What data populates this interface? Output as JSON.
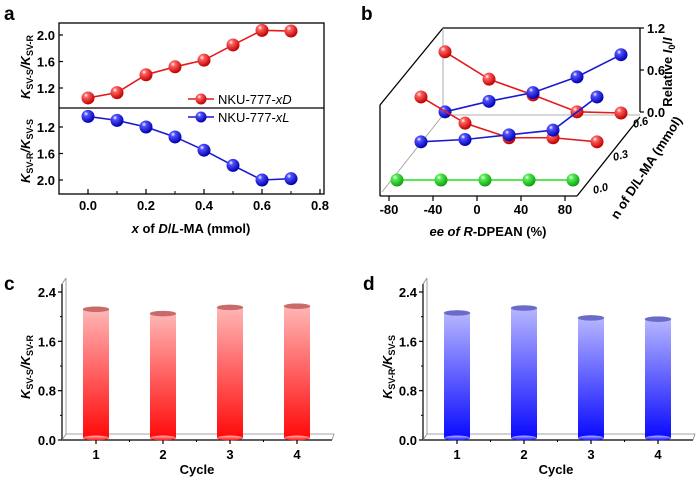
{
  "figure": {
    "panels": [
      "a",
      "b",
      "c",
      "d"
    ]
  },
  "chart_data": [
    {
      "id": "a",
      "type": "line",
      "panel_label": "a",
      "xlabel_parts": [
        "x",
        " of ",
        "D",
        "/",
        "L",
        "-MA (mmol)"
      ],
      "xlabel": "x of D/L-MA (mmol)",
      "x_ticks": [
        "0.0",
        "0.2",
        "0.4",
        "0.6",
        "0.8"
      ],
      "xlim": [
        -0.1,
        0.8
      ],
      "x": [
        0.0,
        0.1,
        0.2,
        0.3,
        0.4,
        0.5,
        0.6,
        0.7
      ],
      "top": {
        "ylabel": "K_SV-S/K_SV-R",
        "ylabel_main1": "K",
        "ylabel_sub1": "SV-S",
        "ylabel_sep": "/",
        "ylabel_main2": "K",
        "ylabel_sub2": "SV-R",
        "y_ticks": [
          "1.2",
          "1.6",
          "2.0"
        ],
        "ylim": [
          0.93,
          2.2
        ],
        "series": [
          {
            "name": "NKU-777-xD",
            "legend_main": "NKU-777-",
            "legend_italic": "xD",
            "color": "#e41a1c",
            "values": [
              1.05,
              1.13,
              1.4,
              1.52,
              1.62,
              1.85,
              2.07,
              2.06
            ]
          }
        ]
      },
      "bottom": {
        "ylabel": "K_SV-R/K_SV-S",
        "ylabel_main1": "K",
        "ylabel_sub1": "SV-R",
        "ylabel_sep": "/",
        "ylabel_main2": "K",
        "ylabel_sub2": "SV-S",
        "y_ticks": [
          "1.2",
          "1.6",
          "2.0"
        ],
        "ylim_inverted": [
          0.93,
          2.2
        ],
        "series": [
          {
            "name": "NKU-777-xL",
            "legend_main": "NKU-777-",
            "legend_italic": "xL",
            "color": "#1a1ad0",
            "values": [
              1.04,
              1.1,
              1.2,
              1.35,
              1.55,
              1.78,
              2.0,
              1.98
            ]
          }
        ]
      }
    },
    {
      "id": "b",
      "type": "line",
      "panel_label": "b",
      "xlabel": "ee of R-DPEAN (%)",
      "xlabel_parts": [
        "ee of ",
        "R",
        "-DPEAN (%)"
      ],
      "ylabel": "n of D/L-MA (mmol)",
      "zlabel": "Relative I0/I",
      "zlabel_parts": [
        "Relative ",
        "I",
        "0",
        "/",
        "I"
      ],
      "x_ticks": [
        "-80",
        "-40",
        "0",
        "40",
        "80"
      ],
      "y_ticks": [
        "0.0",
        "0.3",
        "0.6"
      ],
      "z_ticks": [
        "0.0",
        "0.6",
        "1.2"
      ],
      "x": [
        -80,
        -40,
        0,
        40,
        80
      ],
      "zlim": [
        0,
        1.2
      ],
      "series": [
        {
          "name": "D, n=0.6",
          "n": 0.6,
          "color": "#e41a1c",
          "values": [
            1.05,
            0.58,
            0.31,
            0.02,
            0.0
          ]
        },
        {
          "name": "L, n=0.6",
          "n": 0.6,
          "color": "#1a1ad0",
          "values": [
            0.02,
            0.2,
            0.35,
            0.62,
            1.0
          ]
        },
        {
          "name": "D, n=0.3",
          "n": 0.3,
          "color": "#e41a1c",
          "values": [
            0.85,
            0.4,
            0.15,
            0.15,
            0.08
          ]
        },
        {
          "name": "L, n=0.3",
          "n": 0.3,
          "color": "#1a1ad0",
          "values": [
            0.08,
            0.12,
            0.2,
            0.28,
            0.85
          ]
        },
        {
          "name": "n=0.0",
          "n": 0.0,
          "color": "#22dd22",
          "values": [
            0.0,
            0.0,
            0.0,
            0.0,
            0.0
          ]
        }
      ]
    },
    {
      "id": "c",
      "type": "bar",
      "panel_label": "c",
      "title": "",
      "xlabel": "Cycle",
      "ylabel": "K_SV-S/K_SV-R",
      "ylabel_main1": "K",
      "ylabel_sub1": "SV-S",
      "ylabel_sep": "/",
      "ylabel_main2": "K",
      "ylabel_sub2": "SV-R",
      "categories": [
        "1",
        "2",
        "3",
        "4"
      ],
      "values": [
        2.12,
        2.05,
        2.15,
        2.17
      ],
      "y_ticks": [
        "0.0",
        "0.8",
        "1.6",
        "2.4"
      ],
      "ylim": [
        0,
        2.4
      ],
      "color_top": "#ffb3b3",
      "color_bottom": "#ff1010"
    },
    {
      "id": "d",
      "type": "bar",
      "panel_label": "d",
      "title": "",
      "xlabel": "Cycle",
      "ylabel": "K_SV-R/K_SV-S",
      "ylabel_main1": "K",
      "ylabel_sub1": "SV-R",
      "ylabel_sep": "/",
      "ylabel_main2": "K",
      "ylabel_sub2": "SV-S",
      "categories": [
        "1",
        "2",
        "3",
        "4"
      ],
      "values": [
        2.06,
        2.14,
        1.98,
        1.96
      ],
      "y_ticks": [
        "0.0",
        "0.8",
        "1.6",
        "2.4"
      ],
      "ylim": [
        0,
        2.4
      ],
      "color_top": "#b3b3ff",
      "color_bottom": "#1010ff"
    }
  ]
}
